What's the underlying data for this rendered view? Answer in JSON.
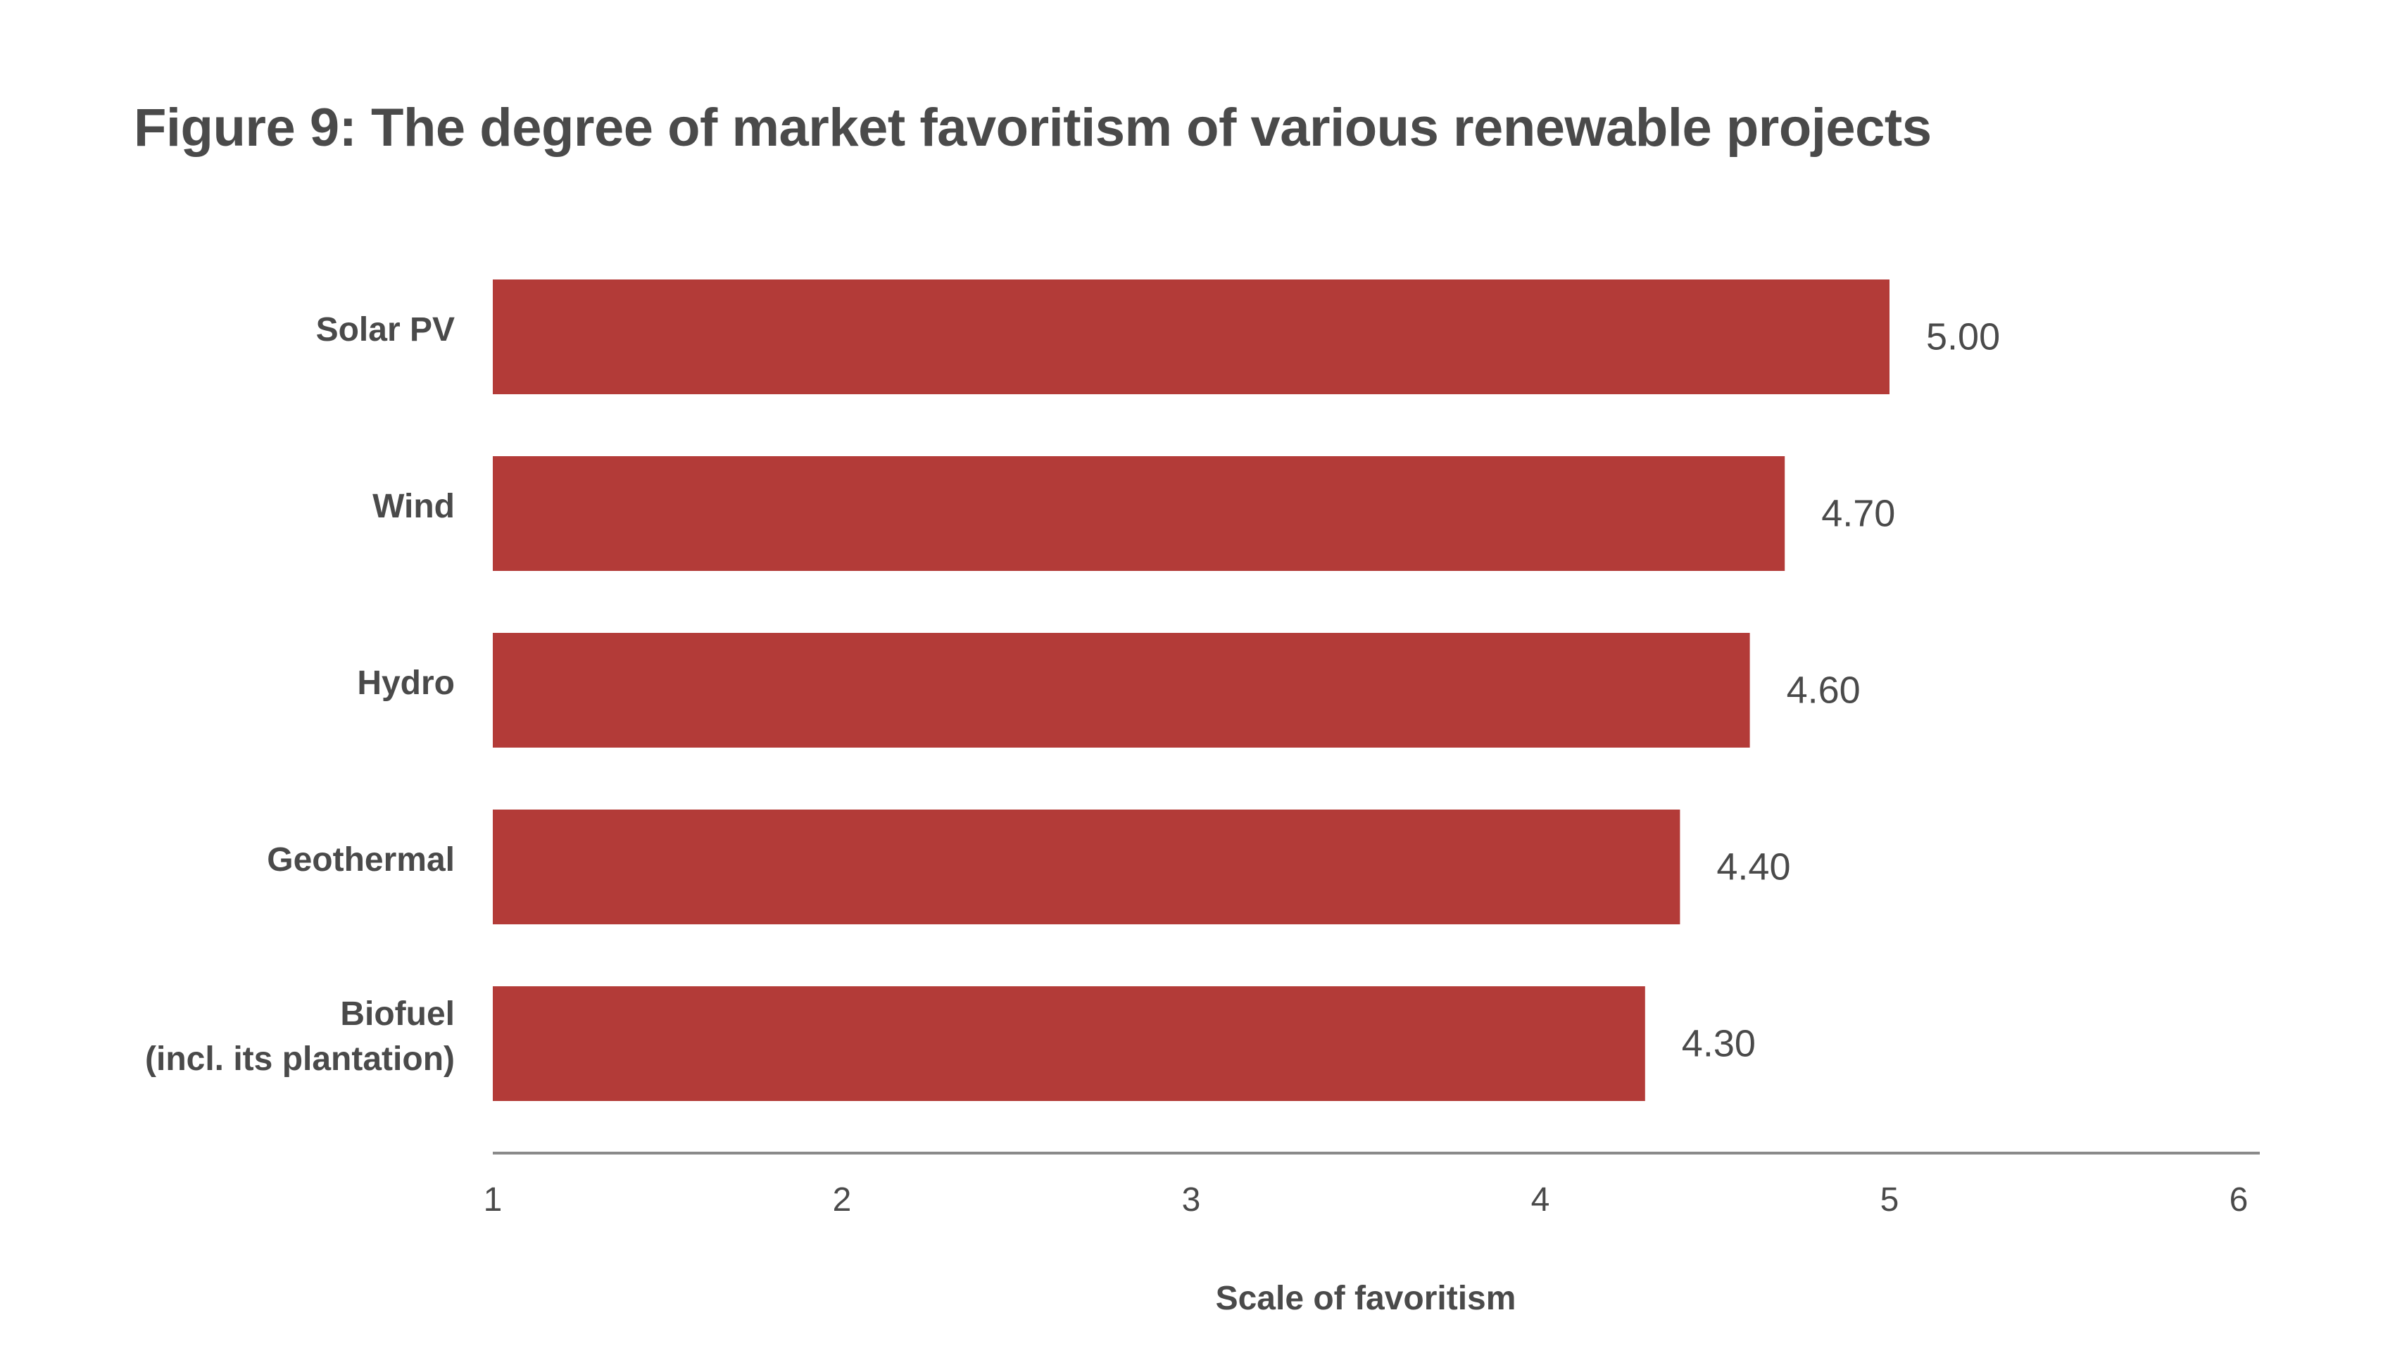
{
  "chart_data": {
    "type": "bar",
    "orientation": "horizontal",
    "title": "Figure 9: The degree of market favoritism of various renewable projects",
    "categories": [
      [
        "Solar PV"
      ],
      [
        "Wind"
      ],
      [
        "Hydro"
      ],
      [
        "Geothermal"
      ],
      [
        "Biofuel",
        "(incl. its plantation)"
      ]
    ],
    "values": [
      5.0,
      4.7,
      4.6,
      4.4,
      4.3
    ],
    "value_labels": [
      "5.00",
      "4.70",
      "4.60",
      "4.40",
      "4.30"
    ],
    "xlabel": "Scale of favoritism",
    "ylabel": "",
    "xlim": [
      1,
      6
    ],
    "xticks": [
      1,
      2,
      3,
      4,
      5,
      6
    ],
    "grid": false,
    "bar_color": "#b33b38",
    "axis_color": "#8a8a8a",
    "text_color": "#4a4a4a"
  }
}
